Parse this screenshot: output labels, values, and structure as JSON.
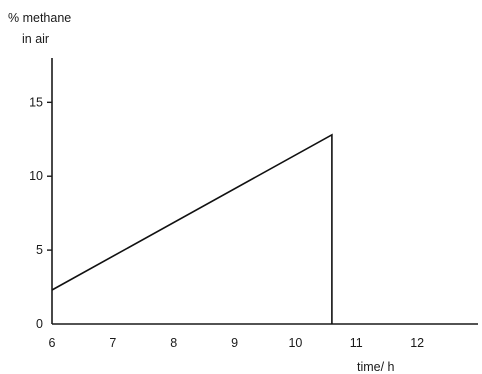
{
  "chart_data": {
    "type": "line",
    "title": "",
    "ylabel_lines": [
      "% methane",
      "in air"
    ],
    "xlabel": "time/ h",
    "xlim": [
      6,
      13
    ],
    "ylim": [
      0,
      18
    ],
    "xticks": [
      6,
      7,
      8,
      9,
      10,
      11,
      12
    ],
    "yticks": [
      0,
      5,
      10,
      15
    ],
    "grid": false,
    "series": [
      {
        "x": [
          6,
          10.6,
          10.6
        ],
        "y": [
          2.3,
          12.8,
          0
        ]
      }
    ]
  }
}
